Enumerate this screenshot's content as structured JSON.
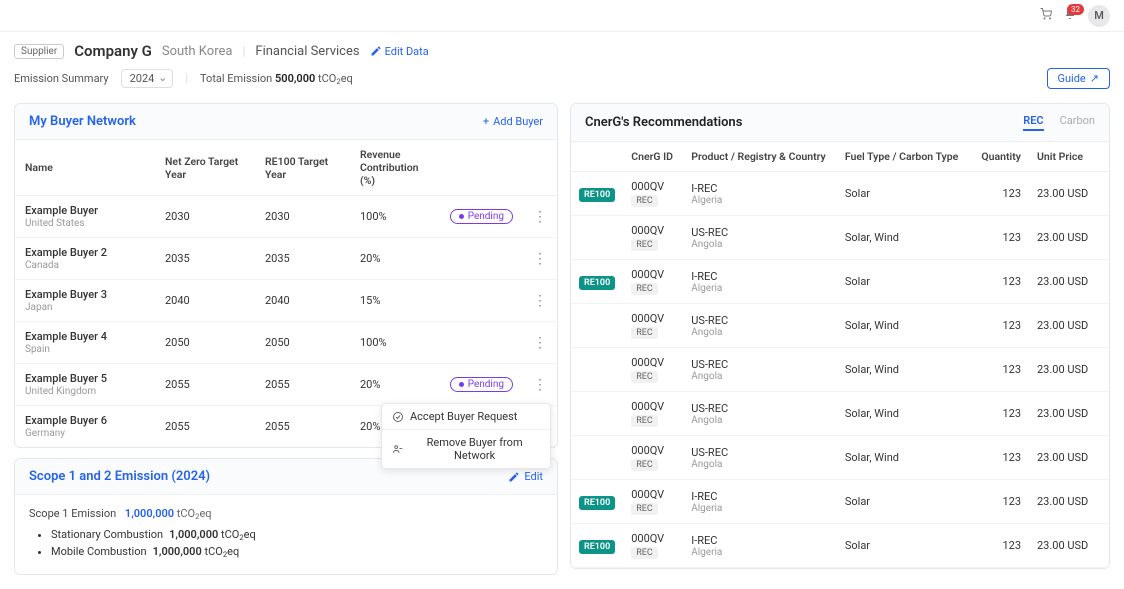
{
  "topbar": {
    "notification_count": "32",
    "avatar_initial": "M"
  },
  "header": {
    "supplier_tag": "Supplier",
    "company_name": "Company G",
    "country": "South Korea",
    "industry": "Financial Services",
    "edit_data_label": "Edit Data",
    "emission_summary_label": "Emission Summary",
    "year": "2024",
    "total_emission_label": "Total Emission",
    "total_emission_value": "500,000",
    "total_emission_unit_prefix": "tCO",
    "total_emission_unit_sub": "2",
    "total_emission_unit_suffix": "eq",
    "guide_label": "Guide"
  },
  "buyers_panel": {
    "title": "My Buyer Network",
    "add_label": "Add Buyer",
    "columns": {
      "name": "Name",
      "nz": "Net Zero Target Year",
      "re100": "RE100 Target Year",
      "rev": "Revenue Contribution (%)"
    },
    "pending_label": "Pending",
    "rows": [
      {
        "name": "Example Buyer",
        "country": "United States",
        "nz": "2030",
        "re100": "2030",
        "rev": "100%",
        "pending": true,
        "menu": false
      },
      {
        "name": "Example Buyer 2",
        "country": "Canada",
        "nz": "2035",
        "re100": "2035",
        "rev": "20%",
        "pending": false,
        "menu": false
      },
      {
        "name": "Example Buyer 3",
        "country": "Japan",
        "nz": "2040",
        "re100": "2040",
        "rev": "15%",
        "pending": false,
        "menu": false
      },
      {
        "name": "Example Buyer 4",
        "country": "Spain",
        "nz": "2050",
        "re100": "2050",
        "rev": "100%",
        "pending": false,
        "menu": false
      },
      {
        "name": "Example Buyer 5",
        "country": "United Kingdom",
        "nz": "2055",
        "re100": "2055",
        "rev": "20%",
        "pending": true,
        "menu": true
      },
      {
        "name": "Example Buyer 6",
        "country": "Germany",
        "nz": "2055",
        "re100": "2055",
        "rev": "20%",
        "pending": false,
        "menu": false
      }
    ],
    "context_menu": {
      "accept": "Accept Buyer Request",
      "remove": "Remove Buyer from Network"
    }
  },
  "scope_panel": {
    "title": "Scope 1 and 2 Emission (2024)",
    "edit_label": "Edit",
    "scope1_label": "Scope 1 Emission",
    "scope1_value": "1,000,000",
    "unit_prefix": "tCO",
    "unit_sub": "2",
    "unit_suffix": "eq",
    "subs": [
      {
        "label": "Stationary Combustion",
        "value": "1,000,000"
      },
      {
        "label": "Mobile Combustion",
        "value": "1,000,000"
      }
    ]
  },
  "recs_panel": {
    "title": "CnerG's Recommendations",
    "tabs": {
      "rec": "REC",
      "carbon": "Carbon"
    },
    "columns": {
      "blank": "",
      "cid": "CnerG ID",
      "product": "Product / Registry & Country",
      "fuel": "Fuel Type / Carbon Type",
      "qty": "Quantity",
      "price": "Unit Price"
    },
    "rec_tag": "REC",
    "rows": [
      {
        "re100": true,
        "cid": "000QV",
        "product": "I-REC",
        "country": "Algeria",
        "fuel": "Solar",
        "qty": "123",
        "price": "23.00 USD"
      },
      {
        "re100": false,
        "cid": "000QV",
        "product": "US-REC",
        "country": "Angola",
        "fuel": "Solar, Wind",
        "qty": "123",
        "price": "23.00 USD"
      },
      {
        "re100": true,
        "cid": "000QV",
        "product": "I-REC",
        "country": "Algeria",
        "fuel": "Solar",
        "qty": "123",
        "price": "23.00 USD"
      },
      {
        "re100": false,
        "cid": "000QV",
        "product": "US-REC",
        "country": "Angola",
        "fuel": "Solar, Wind",
        "qty": "123",
        "price": "23.00 USD"
      },
      {
        "re100": false,
        "cid": "000QV",
        "product": "US-REC",
        "country": "Angola",
        "fuel": "Solar, Wind",
        "qty": "123",
        "price": "23.00 USD"
      },
      {
        "re100": false,
        "cid": "000QV",
        "product": "US-REC",
        "country": "Angola",
        "fuel": "Solar, Wind",
        "qty": "123",
        "price": "23.00 USD"
      },
      {
        "re100": false,
        "cid": "000QV",
        "product": "US-REC",
        "country": "Angola",
        "fuel": "Solar, Wind",
        "qty": "123",
        "price": "23.00 USD"
      },
      {
        "re100": true,
        "cid": "000QV",
        "product": "I-REC",
        "country": "Algeria",
        "fuel": "Solar",
        "qty": "123",
        "price": "23.00 USD"
      },
      {
        "re100": true,
        "cid": "000QV",
        "product": "I-REC",
        "country": "Algeria",
        "fuel": "Solar",
        "qty": "123",
        "price": "23.00 USD"
      }
    ]
  }
}
